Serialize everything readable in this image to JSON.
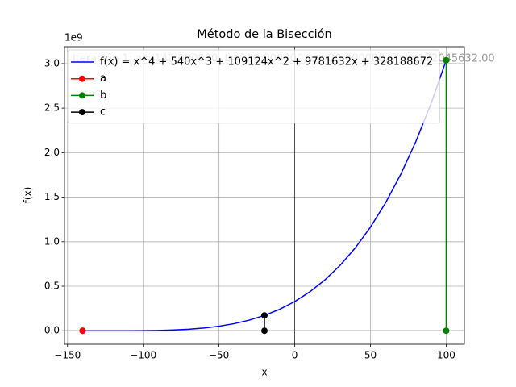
{
  "chart_data": {
    "type": "line",
    "title": "Método de la Bisección",
    "annotation": "Iteración 1: a=-140.000000, b=100.000000, c=-20.000000, f(c)=172045632.00",
    "x_label": "x",
    "y_label": "f(x)",
    "y_offset_label": "1e9",
    "xlim": [
      -152,
      112
    ],
    "ylim": [
      -151889472,
      3189471936
    ],
    "xticks": [
      {
        "value": -150,
        "label": "−150"
      },
      {
        "value": -100,
        "label": "−100"
      },
      {
        "value": -50,
        "label": "−50"
      },
      0,
      50,
      100
    ],
    "yticks": [
      {
        "value": 0,
        "label": "0.0"
      },
      {
        "value": 500000000,
        "label": "0.5"
      },
      {
        "value": 1000000000,
        "label": "1.0"
      },
      {
        "value": 1500000000,
        "label": "1.5"
      },
      {
        "value": 2000000000,
        "label": "2.0"
      },
      {
        "value": 2500000000,
        "label": "2.5"
      },
      {
        "value": 3000000000,
        "label": "3.0"
      }
    ],
    "grid": true,
    "zero_lines": true,
    "legend": "upper left",
    "series": [
      {
        "name": "f(x) = x^4 + 540x^3 + 109124x^2 + 9781632x + 328188672",
        "color": "#0000ff",
        "marker": false,
        "x": [
          -140,
          -130,
          -120,
          -110,
          -100,
          -90,
          -80,
          -70,
          -60,
          -50,
          -40,
          -30,
          -20,
          -10,
          0,
          10,
          20,
          30,
          40,
          50,
          60,
          70,
          80,
          90,
          100
        ],
        "values": [
          -9408,
          2112,
          18432,
          279552,
          1265472,
          3696192,
          8531712,
          16972032,
          30457152,
          50667072,
          79521792,
          119181312,
          172045632,
          240754752,
          328188672,
          437467392,
          571950912,
          735239232,
          931172352,
          1163830272,
          1437532992,
          1756840512,
          2126552832,
          2551709952,
          3037591872
        ]
      },
      {
        "name": "a",
        "color": "#ff0000",
        "marker": true,
        "x": [
          -140,
          -140
        ],
        "values": [
          0,
          -9408
        ]
      },
      {
        "name": "b",
        "color": "#008000",
        "marker": true,
        "x": [
          100,
          100
        ],
        "values": [
          0,
          3037591872
        ]
      },
      {
        "name": "c",
        "color": "#000000",
        "marker": true,
        "x": [
          -20,
          -20
        ],
        "values": [
          0,
          172045632
        ]
      }
    ]
  }
}
